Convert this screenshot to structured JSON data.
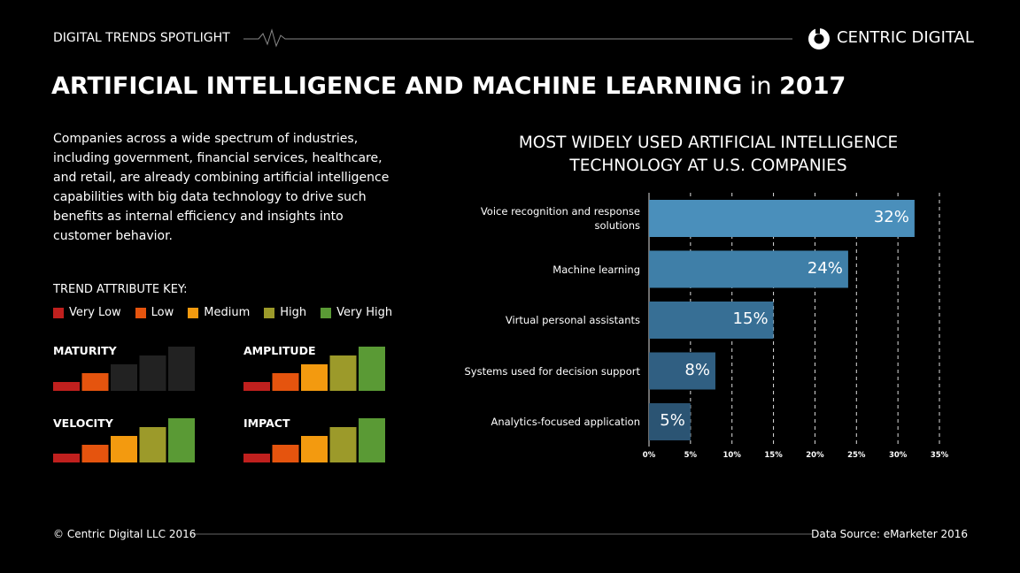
{
  "header": {
    "label": "DIGITAL TRENDS SPOTLIGHT",
    "brand": "CENTRIC DIGITAL"
  },
  "title": {
    "main": "ARTIFICIAL INTELLIGENCE AND MACHINE LEARNING",
    "connector": "in",
    "year": "2017"
  },
  "intro": "Companies across a wide spectrum of industries, including government, financial services, healthcare, and retail, are already combining artificial intelligence capabilities with big data technology to drive such benefits as internal efficiency and insights into customer behavior.",
  "key": {
    "title": "TREND ATTRIBUTE KEY:",
    "levels": [
      {
        "label": "Very Low",
        "color": "#c0201e"
      },
      {
        "label": "Low",
        "color": "#e5540e"
      },
      {
        "label": "Medium",
        "color": "#f39a0f"
      },
      {
        "label": "High",
        "color": "#9c9a2a"
      },
      {
        "label": "Very High",
        "color": "#5a9a35"
      }
    ]
  },
  "attributes": [
    {
      "name": "MATURITY",
      "rating": 2
    },
    {
      "name": "AMPLITUDE",
      "rating": 5
    },
    {
      "name": "VELOCITY",
      "rating": 5
    },
    {
      "name": "IMPACT",
      "rating": 5
    }
  ],
  "chart_data": {
    "type": "bar",
    "orientation": "horizontal",
    "title": "MOST WIDELY USED ARTIFICIAL INTELLIGENCE TECHNOLOGY AT U.S. COMPANIES",
    "categories": [
      "Voice recognition and response solutions",
      "Machine learning",
      "Virtual personal assistants",
      "Systems used for decision support",
      "Analytics-focused application"
    ],
    "values": [
      32,
      24,
      15,
      8,
      5
    ],
    "value_labels": [
      "32%",
      "24%",
      "15%",
      "8%",
      "5%"
    ],
    "colors": [
      "#4a8fbb",
      "#3f7fa8",
      "#376f95",
      "#305f82",
      "#2b5473"
    ],
    "xlim": [
      0,
      35
    ],
    "xticks": [
      {
        "value": 0,
        "label": "0%"
      },
      {
        "value": 5,
        "label": "5%"
      },
      {
        "value": 10,
        "label": "10%"
      },
      {
        "value": 15,
        "label": "15%"
      },
      {
        "value": 20,
        "label": "20%"
      },
      {
        "value": 25,
        "label": "25%"
      },
      {
        "value": 30,
        "label": "30%"
      },
      {
        "value": 35,
        "label": "35%"
      }
    ],
    "grid": true
  },
  "footer": {
    "copyright": "© Centric Digital LLC 2016",
    "source": "Data Source: eMarketer 2016"
  }
}
